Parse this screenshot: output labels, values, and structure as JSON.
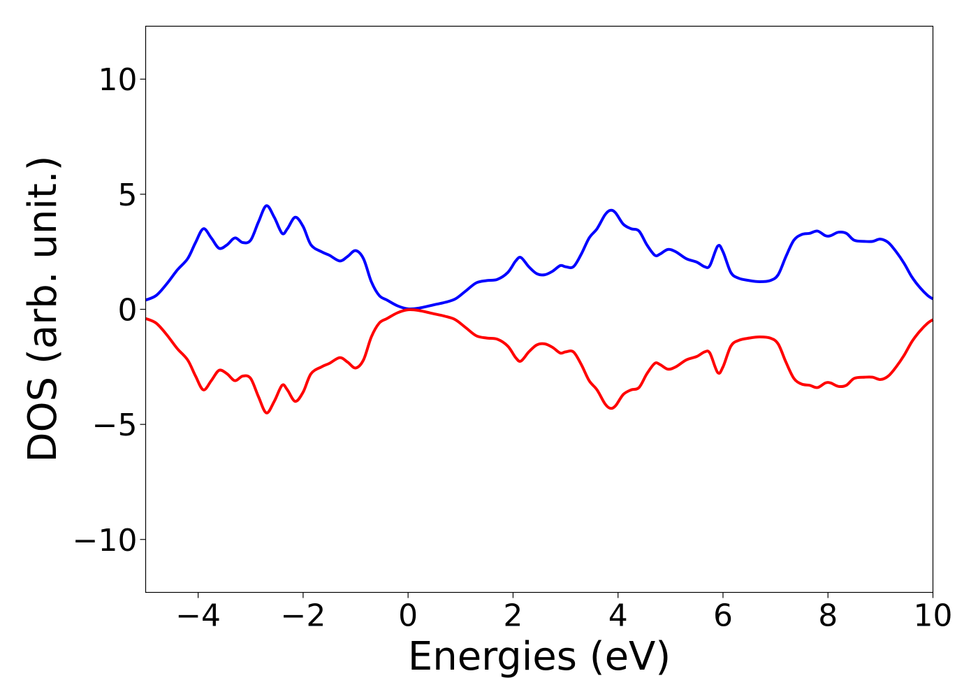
{
  "chart_data": {
    "type": "line",
    "title": "",
    "xlabel": "Energies (eV)",
    "ylabel": "DOS (arb. unit.)",
    "xlim": [
      -5,
      10
    ],
    "ylim": [
      -12.3,
      12.3
    ],
    "xticks": [
      -4,
      -2,
      0,
      2,
      4,
      6,
      8,
      10
    ],
    "xtick_labels": [
      "−4",
      "−2",
      "0",
      "2",
      "4",
      "6",
      "8",
      "10"
    ],
    "yticks": [
      10,
      5,
      0,
      -5,
      -10
    ],
    "ytick_labels": [
      "10",
      "5",
      "0",
      "−5",
      "−10"
    ],
    "grid": false,
    "legend": false,
    "series": [
      {
        "color": "#0000ff",
        "points": [
          [
            -5.0,
            0.4
          ],
          [
            -4.8,
            0.6
          ],
          [
            -4.6,
            1.1
          ],
          [
            -4.4,
            1.7
          ],
          [
            -4.2,
            2.2
          ],
          [
            -4.05,
            2.9
          ],
          [
            -3.9,
            3.5
          ],
          [
            -3.75,
            3.1
          ],
          [
            -3.6,
            2.65
          ],
          [
            -3.45,
            2.8
          ],
          [
            -3.3,
            3.1
          ],
          [
            -3.15,
            2.9
          ],
          [
            -3.0,
            3.0
          ],
          [
            -2.85,
            3.8
          ],
          [
            -2.7,
            4.5
          ],
          [
            -2.55,
            4.0
          ],
          [
            -2.4,
            3.3
          ],
          [
            -2.3,
            3.5
          ],
          [
            -2.15,
            4.0
          ],
          [
            -2.0,
            3.6
          ],
          [
            -1.85,
            2.8
          ],
          [
            -1.65,
            2.5
          ],
          [
            -1.5,
            2.35
          ],
          [
            -1.3,
            2.1
          ],
          [
            -1.15,
            2.3
          ],
          [
            -1.0,
            2.55
          ],
          [
            -0.85,
            2.2
          ],
          [
            -0.7,
            1.2
          ],
          [
            -0.55,
            0.6
          ],
          [
            -0.4,
            0.4
          ],
          [
            -0.2,
            0.15
          ],
          [
            0.0,
            0.02
          ],
          [
            0.2,
            0.05
          ],
          [
            0.5,
            0.2
          ],
          [
            0.7,
            0.3
          ],
          [
            0.9,
            0.45
          ],
          [
            1.1,
            0.8
          ],
          [
            1.3,
            1.15
          ],
          [
            1.5,
            1.25
          ],
          [
            1.7,
            1.3
          ],
          [
            1.9,
            1.6
          ],
          [
            2.05,
            2.1
          ],
          [
            2.15,
            2.25
          ],
          [
            2.3,
            1.85
          ],
          [
            2.45,
            1.55
          ],
          [
            2.6,
            1.5
          ],
          [
            2.75,
            1.65
          ],
          [
            2.9,
            1.9
          ],
          [
            3.0,
            1.85
          ],
          [
            3.15,
            1.85
          ],
          [
            3.3,
            2.4
          ],
          [
            3.45,
            3.1
          ],
          [
            3.6,
            3.5
          ],
          [
            3.75,
            4.1
          ],
          [
            3.85,
            4.3
          ],
          [
            3.95,
            4.2
          ],
          [
            4.1,
            3.7
          ],
          [
            4.25,
            3.5
          ],
          [
            4.4,
            3.4
          ],
          [
            4.55,
            2.8
          ],
          [
            4.7,
            2.35
          ],
          [
            4.8,
            2.4
          ],
          [
            4.95,
            2.6
          ],
          [
            5.1,
            2.5
          ],
          [
            5.3,
            2.2
          ],
          [
            5.5,
            2.05
          ],
          [
            5.65,
            1.85
          ],
          [
            5.75,
            1.9
          ],
          [
            5.9,
            2.75
          ],
          [
            6.0,
            2.5
          ],
          [
            6.15,
            1.6
          ],
          [
            6.3,
            1.35
          ],
          [
            6.5,
            1.25
          ],
          [
            6.7,
            1.2
          ],
          [
            6.9,
            1.25
          ],
          [
            7.05,
            1.5
          ],
          [
            7.2,
            2.3
          ],
          [
            7.35,
            3.0
          ],
          [
            7.5,
            3.25
          ],
          [
            7.65,
            3.3
          ],
          [
            7.8,
            3.4
          ],
          [
            7.95,
            3.2
          ],
          [
            8.05,
            3.2
          ],
          [
            8.2,
            3.35
          ],
          [
            8.35,
            3.3
          ],
          [
            8.5,
            3.0
          ],
          [
            8.7,
            2.95
          ],
          [
            8.85,
            2.95
          ],
          [
            9.0,
            3.05
          ],
          [
            9.15,
            2.9
          ],
          [
            9.3,
            2.5
          ],
          [
            9.45,
            2.0
          ],
          [
            9.6,
            1.4
          ],
          [
            9.75,
            0.95
          ],
          [
            9.9,
            0.6
          ],
          [
            10.0,
            0.45
          ]
        ]
      },
      {
        "color": "#ff0000",
        "points": [
          [
            -5.0,
            -0.4
          ],
          [
            -4.8,
            -0.6
          ],
          [
            -4.6,
            -1.1
          ],
          [
            -4.4,
            -1.7
          ],
          [
            -4.2,
            -2.2
          ],
          [
            -4.05,
            -2.9
          ],
          [
            -3.9,
            -3.5
          ],
          [
            -3.75,
            -3.1
          ],
          [
            -3.6,
            -2.65
          ],
          [
            -3.45,
            -2.8
          ],
          [
            -3.3,
            -3.1
          ],
          [
            -3.15,
            -2.9
          ],
          [
            -3.0,
            -3.0
          ],
          [
            -2.85,
            -3.8
          ],
          [
            -2.7,
            -4.5
          ],
          [
            -2.55,
            -4.0
          ],
          [
            -2.4,
            -3.3
          ],
          [
            -2.3,
            -3.5
          ],
          [
            -2.15,
            -4.0
          ],
          [
            -2.0,
            -3.6
          ],
          [
            -1.85,
            -2.8
          ],
          [
            -1.65,
            -2.5
          ],
          [
            -1.5,
            -2.35
          ],
          [
            -1.3,
            -2.1
          ],
          [
            -1.15,
            -2.3
          ],
          [
            -1.0,
            -2.55
          ],
          [
            -0.85,
            -2.2
          ],
          [
            -0.7,
            -1.2
          ],
          [
            -0.55,
            -0.6
          ],
          [
            -0.4,
            -0.4
          ],
          [
            -0.2,
            -0.15
          ],
          [
            0.0,
            -0.02
          ],
          [
            0.2,
            -0.05
          ],
          [
            0.5,
            -0.2
          ],
          [
            0.7,
            -0.3
          ],
          [
            0.9,
            -0.45
          ],
          [
            1.1,
            -0.8
          ],
          [
            1.3,
            -1.15
          ],
          [
            1.5,
            -1.25
          ],
          [
            1.7,
            -1.3
          ],
          [
            1.9,
            -1.6
          ],
          [
            2.05,
            -2.1
          ],
          [
            2.15,
            -2.25
          ],
          [
            2.3,
            -1.85
          ],
          [
            2.45,
            -1.55
          ],
          [
            2.6,
            -1.5
          ],
          [
            2.75,
            -1.65
          ],
          [
            2.9,
            -1.9
          ],
          [
            3.0,
            -1.85
          ],
          [
            3.15,
            -1.85
          ],
          [
            3.3,
            -2.4
          ],
          [
            3.45,
            -3.1
          ],
          [
            3.6,
            -3.5
          ],
          [
            3.75,
            -4.1
          ],
          [
            3.85,
            -4.3
          ],
          [
            3.95,
            -4.2
          ],
          [
            4.1,
            -3.7
          ],
          [
            4.25,
            -3.5
          ],
          [
            4.4,
            -3.4
          ],
          [
            4.55,
            -2.8
          ],
          [
            4.7,
            -2.35
          ],
          [
            4.8,
            -2.4
          ],
          [
            4.95,
            -2.6
          ],
          [
            5.1,
            -2.5
          ],
          [
            5.3,
            -2.2
          ],
          [
            5.5,
            -2.05
          ],
          [
            5.65,
            -1.85
          ],
          [
            5.75,
            -1.9
          ],
          [
            5.9,
            -2.75
          ],
          [
            6.0,
            -2.5
          ],
          [
            6.15,
            -1.6
          ],
          [
            6.3,
            -1.35
          ],
          [
            6.5,
            -1.25
          ],
          [
            6.7,
            -1.2
          ],
          [
            6.9,
            -1.25
          ],
          [
            7.05,
            -1.5
          ],
          [
            7.2,
            -2.3
          ],
          [
            7.35,
            -3.0
          ],
          [
            7.5,
            -3.25
          ],
          [
            7.65,
            -3.3
          ],
          [
            7.8,
            -3.4
          ],
          [
            7.95,
            -3.2
          ],
          [
            8.05,
            -3.2
          ],
          [
            8.2,
            -3.35
          ],
          [
            8.35,
            -3.3
          ],
          [
            8.5,
            -3.0
          ],
          [
            8.7,
            -2.95
          ],
          [
            8.85,
            -2.95
          ],
          [
            9.0,
            -3.05
          ],
          [
            9.15,
            -2.9
          ],
          [
            9.3,
            -2.5
          ],
          [
            9.45,
            -2.0
          ],
          [
            9.6,
            -1.4
          ],
          [
            9.75,
            -0.95
          ],
          [
            9.9,
            -0.6
          ],
          [
            10.0,
            -0.45
          ]
        ]
      }
    ]
  }
}
